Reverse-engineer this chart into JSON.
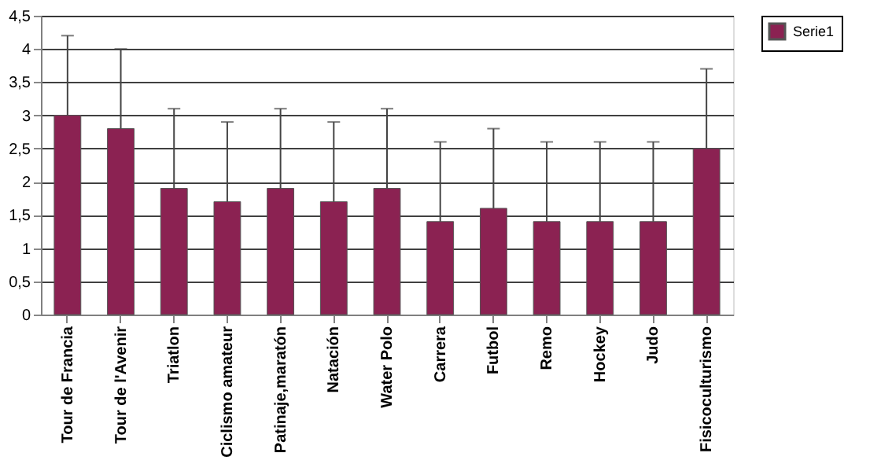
{
  "chart_data": {
    "type": "bar",
    "categories": [
      "Tour de Francia",
      "Tour de l'Avenir",
      "Triatlon",
      "Ciclismo amateur",
      "Patinaje,maratón",
      "Natación",
      "Water Polo",
      "Carrera",
      "Futbol",
      "Remo",
      "Hockey",
      "Judo",
      "Fisicoculturismo"
    ],
    "series": [
      {
        "name": "Serie1",
        "color": "#8b2252",
        "values": [
          3.0,
          2.8,
          1.9,
          1.7,
          1.9,
          1.7,
          1.9,
          1.4,
          1.6,
          1.4,
          1.4,
          1.4,
          2.5
        ],
        "errors": [
          [
            3.0,
            4.2
          ],
          [
            2.8,
            4.0
          ],
          [
            1.9,
            3.1
          ],
          [
            1.7,
            2.9
          ],
          [
            1.9,
            3.1
          ],
          [
            1.7,
            2.9
          ],
          [
            1.9,
            3.1
          ],
          [
            1.4,
            2.6
          ],
          [
            1.6,
            2.8
          ],
          [
            1.4,
            2.6
          ],
          [
            1.4,
            2.6
          ],
          [
            1.4,
            2.6
          ],
          [
            2.5,
            3.7
          ]
        ]
      }
    ],
    "ylim": [
      0,
      4.5
    ],
    "yticks": [
      0,
      {
        "value": 0.5,
        "label": "0,5"
      },
      1,
      {
        "value": 1.5,
        "label": "1,5"
      },
      2,
      {
        "value": 2.5,
        "label": "2,5"
      },
      3,
      {
        "value": 3.5,
        "label": "3,5"
      },
      4,
      {
        "value": 4.5,
        "label": "4,5"
      }
    ],
    "grid": "y",
    "legend": "right"
  }
}
